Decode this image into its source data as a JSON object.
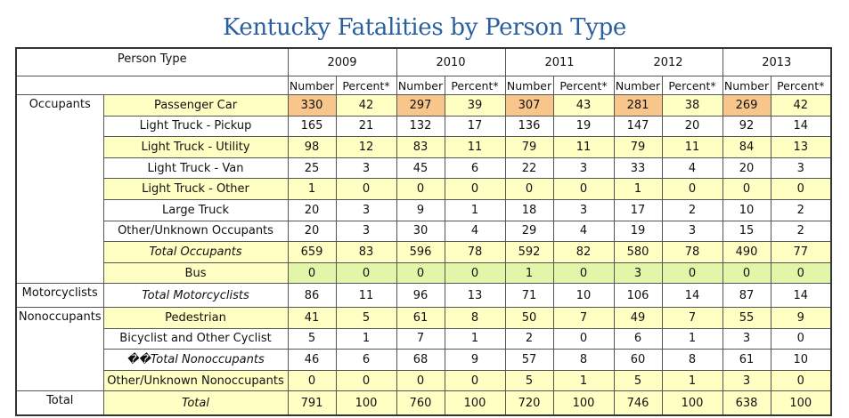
{
  "title": "Kentucky Fatalities by Person Type",
  "header": {
    "person_type": "Person Type",
    "years": [
      "2009",
      "2010",
      "2011",
      "2012",
      "2013"
    ],
    "number_label": "Number",
    "percent_label": "Percent*"
  },
  "rows": [
    {
      "group": "Occupants",
      "label": "Passenger Car",
      "italic": false,
      "label_fill": "yellow",
      "fill": "orange",
      "cells": [
        "330",
        "42",
        "297",
        "39",
        "307",
        "43",
        "281",
        "38",
        "269",
        "42"
      ]
    },
    {
      "group": "",
      "label": "Light Truck - Pickup",
      "italic": false,
      "label_fill": "none",
      "fill": "none",
      "cells": [
        "165",
        "21",
        "132",
        "17",
        "136",
        "19",
        "147",
        "20",
        "92",
        "14"
      ]
    },
    {
      "group": "",
      "label": "Light Truck - Utility",
      "italic": false,
      "label_fill": "yellow",
      "fill": "yellow",
      "cells": [
        "98",
        "12",
        "83",
        "11",
        "79",
        "11",
        "79",
        "11",
        "84",
        "13"
      ]
    },
    {
      "group": "",
      "label": "Light Truck - Van",
      "italic": false,
      "label_fill": "none",
      "fill": "none",
      "cells": [
        "25",
        "3",
        "45",
        "6",
        "22",
        "3",
        "33",
        "4",
        "20",
        "3"
      ]
    },
    {
      "group": "",
      "label": "Light Truck - Other",
      "italic": false,
      "label_fill": "yellow",
      "fill": "yellow",
      "cells": [
        "1",
        "0",
        "0",
        "0",
        "0",
        "0",
        "1",
        "0",
        "0",
        "0"
      ]
    },
    {
      "group": "",
      "label": "Large Truck",
      "italic": false,
      "label_fill": "none",
      "fill": "none",
      "cells": [
        "20",
        "3",
        "9",
        "1",
        "18",
        "3",
        "17",
        "2",
        "10",
        "2"
      ]
    },
    {
      "group": "",
      "label": "Other/Unknown Occupants",
      "italic": false,
      "label_fill": "none",
      "fill": "none",
      "cells": [
        "20",
        "3",
        "30",
        "4",
        "29",
        "4",
        "19",
        "3",
        "15",
        "2"
      ]
    },
    {
      "group": "",
      "label": "Total Occupants",
      "italic": true,
      "label_fill": "yellow",
      "fill": "yellow",
      "cells": [
        "659",
        "83",
        "596",
        "78",
        "592",
        "82",
        "580",
        "78",
        "490",
        "77"
      ]
    },
    {
      "group": "",
      "label": "Bus",
      "italic": false,
      "label_fill": "yellow",
      "fill": "green",
      "cells": [
        "0",
        "0",
        "0",
        "0",
        "1",
        "0",
        "3",
        "0",
        "0",
        "0"
      ]
    },
    {
      "group": "Motorcyclists",
      "label": "Total Motorcyclists",
      "italic": true,
      "label_fill": "none",
      "fill": "none",
      "cells": [
        "86",
        "11",
        "96",
        "13",
        "71",
        "10",
        "106",
        "14",
        "87",
        "14"
      ]
    },
    {
      "group": "Nonoccupants",
      "label": "Pedestrian",
      "italic": false,
      "label_fill": "yellow",
      "fill": "yellow",
      "cells": [
        "41",
        "5",
        "61",
        "8",
        "50",
        "7",
        "49",
        "7",
        "55",
        "9"
      ]
    },
    {
      "group": "",
      "label": "Bicyclist and Other Cyclist",
      "italic": false,
      "label_fill": "none",
      "fill": "none",
      "cells": [
        "5",
        "1",
        "7",
        "1",
        "2",
        "0",
        "6",
        "1",
        "3",
        "0"
      ]
    },
    {
      "group": "",
      "label": "��Total Nonoccupants",
      "italic": true,
      "label_fill": "none",
      "fill": "none",
      "cells": [
        "46",
        "6",
        "68",
        "9",
        "57",
        "8",
        "60",
        "8",
        "61",
        "10"
      ]
    },
    {
      "group": "",
      "label": "Other/Unknown Nonoccupants",
      "italic": false,
      "label_fill": "yellow",
      "fill": "yellow",
      "cells": [
        "0",
        "0",
        "0",
        "0",
        "5",
        "1",
        "5",
        "1",
        "3",
        "0"
      ]
    },
    {
      "group": "Total",
      "label": "Total",
      "italic": true,
      "label_fill": "yellow",
      "fill": "yellow",
      "cells": [
        "791",
        "100",
        "760",
        "100",
        "720",
        "100",
        "746",
        "100",
        "638",
        "100"
      ]
    }
  ]
}
